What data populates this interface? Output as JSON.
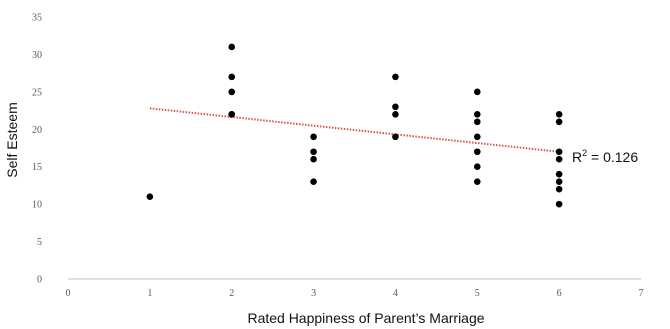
{
  "chart_data": {
    "type": "scatter",
    "title": "",
    "xlabel": "Rated Happiness of Parent’s Marriage",
    "ylabel": "Self Esteem",
    "xlim": [
      0,
      7
    ],
    "ylim": [
      0,
      35
    ],
    "xticks": [
      0,
      1,
      2,
      3,
      4,
      5,
      6,
      7
    ],
    "yticks": [
      0,
      5,
      10,
      15,
      20,
      25,
      30,
      35
    ],
    "grid": false,
    "legend": "none",
    "series": [
      {
        "marker_color": "#000000",
        "points": [
          [
            1,
            11
          ],
          [
            2,
            22
          ],
          [
            2,
            22
          ],
          [
            2,
            25
          ],
          [
            2,
            27
          ],
          [
            2,
            31
          ],
          [
            3,
            13
          ],
          [
            3,
            16
          ],
          [
            3,
            17
          ],
          [
            3,
            19
          ],
          [
            4,
            19
          ],
          [
            4,
            22
          ],
          [
            4,
            23
          ],
          [
            4,
            27
          ],
          [
            5,
            13
          ],
          [
            5,
            15
          ],
          [
            5,
            17
          ],
          [
            5,
            19
          ],
          [
            5,
            21
          ],
          [
            5,
            22
          ],
          [
            5,
            25
          ],
          [
            6,
            10
          ],
          [
            6,
            12
          ],
          [
            6,
            13
          ],
          [
            6,
            14
          ],
          [
            6,
            16
          ],
          [
            6,
            17
          ],
          [
            6,
            21
          ],
          [
            6,
            22
          ]
        ]
      }
    ],
    "trendline": {
      "type": "linear",
      "x_range": [
        1,
        6
      ],
      "y_start": 22.8,
      "y_end": 17.0,
      "color": "#d9534f",
      "style": "dotted"
    },
    "annotation": {
      "r2_prefix": "R",
      "r2_sup": "2",
      "r2_value": " = 0.126"
    }
  }
}
